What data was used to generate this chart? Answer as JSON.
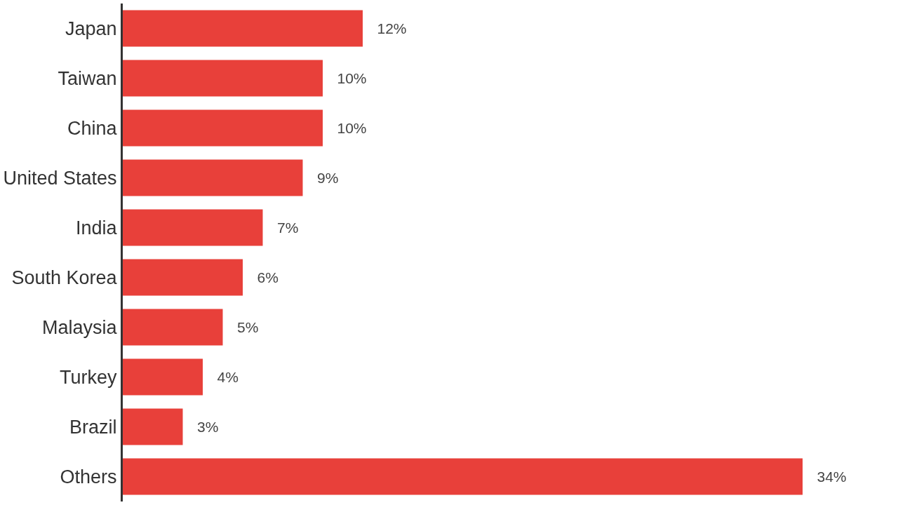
{
  "chart_data": {
    "type": "bar",
    "orientation": "horizontal",
    "categories": [
      "Japan",
      "Taiwan",
      "China",
      "United States",
      "India",
      "South Korea",
      "Malaysia",
      "Turkey",
      "Brazil",
      "Others"
    ],
    "values": [
      12,
      10,
      10,
      9,
      7,
      6,
      5,
      4,
      3,
      34
    ],
    "value_labels": [
      "12%",
      "10%",
      "10%",
      "9%",
      "7%",
      "6%",
      "5%",
      "4%",
      "3%",
      "34%"
    ],
    "color": "#e8403a",
    "tick_labels": "y"
  }
}
